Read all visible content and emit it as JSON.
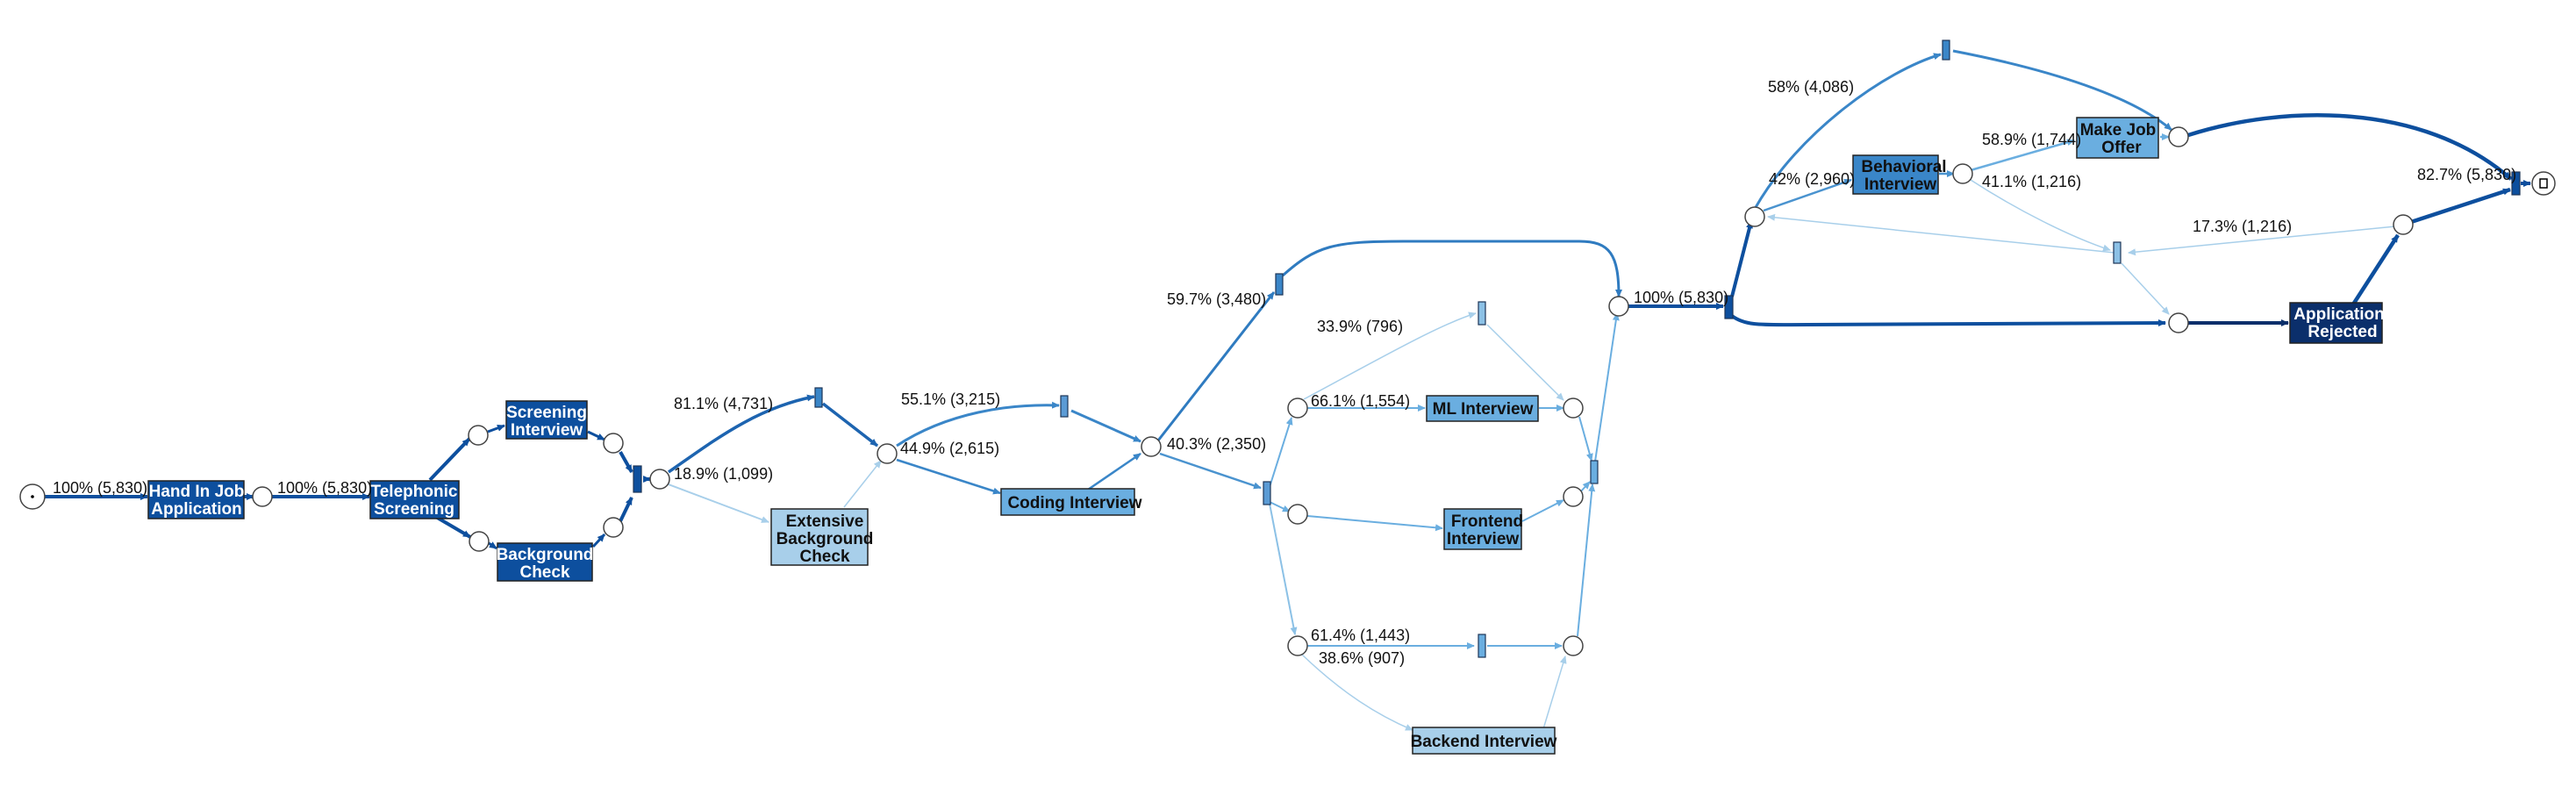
{
  "colors": {
    "darkest": "#0b2f6b",
    "dark": "#0d4f9e",
    "mid": "#3a86c8",
    "light": "#6aaee0",
    "lighter": "#8cc1e6",
    "lightest": "#a8cfea",
    "silent_fill": "#5b9bd5"
  },
  "activities": {
    "hand_in": [
      "Hand In Job",
      "Application"
    ],
    "telephonic": [
      "Telephonic",
      "Screening"
    ],
    "screening_interview": [
      "Screening",
      "Interview"
    ],
    "background_check": [
      "Background",
      "Check"
    ],
    "extensive_background": [
      "Extensive",
      "Background",
      "Check"
    ],
    "coding_interview": [
      "Coding Interview"
    ],
    "ml_interview": [
      "ML Interview"
    ],
    "frontend_interview": [
      "Frontend",
      "Interview"
    ],
    "backend_interview": [
      "Backend Interview"
    ],
    "behavioral_interview": [
      "Behavioral",
      "Interview"
    ],
    "make_job_offer": [
      "Make Job",
      "Offer"
    ],
    "application_rejected": [
      "Application",
      "Rejected"
    ]
  },
  "edge_labels": {
    "start_to_hand_in": "100% (5,830)",
    "hand_in_to_telephonic": "100% (5,830)",
    "to_silent_811": "81.1% (4,731)",
    "to_extensive": "18.9% (1,099)",
    "to_silent_551": "55.1% (3,215)",
    "to_coding": "44.9% (2,615)",
    "to_silent_597": "59.7% (3,480)",
    "to_split_403": "40.3% (2,350)",
    "to_silent_339": "33.9% (796)",
    "to_ml": "66.1% (1,554)",
    "to_silent_614": "61.4% (1,443)",
    "to_backend": "38.6% (907)",
    "to_big_split": "100% (5,830)",
    "to_silent_58": "58% (4,086)",
    "to_behavioral": "42% (2,960)",
    "to_offer": "58.9% (1,744)",
    "to_silent_411": "41.1% (1,216)",
    "loop_back": "17.3% (1,216)",
    "to_end": "82.7% (5,830)"
  }
}
